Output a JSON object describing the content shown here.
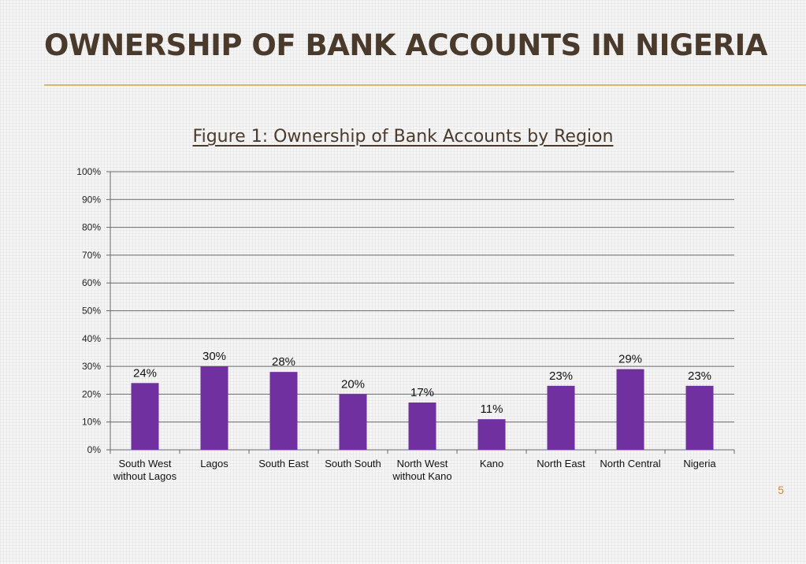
{
  "slide": {
    "title": "OWNERSHIP OF BANK ACCOUNTS IN NIGERIA",
    "page_number": "5"
  },
  "colors": {
    "bar": "#7030a0",
    "title": "#4a3a2c",
    "accent_rule": "#d9b36a",
    "page_number": "#d08a2c"
  },
  "chart_data": {
    "type": "bar",
    "title": "Figure 1: Ownership of Bank Accounts by Region",
    "categories": [
      [
        "South West",
        "without Lagos"
      ],
      [
        "Lagos"
      ],
      [
        "South East"
      ],
      [
        "South South"
      ],
      [
        "North West",
        "without Kano"
      ],
      [
        "Kano"
      ],
      [
        "North East"
      ],
      [
        "North Central"
      ],
      [
        "Nigeria"
      ]
    ],
    "values": [
      24,
      30,
      28,
      20,
      17,
      11,
      23,
      29,
      23
    ],
    "data_labels": [
      "24%",
      "30%",
      "28%",
      "20%",
      "17%",
      "11%",
      "23%",
      "29%",
      "23%"
    ],
    "y_ticks": [
      "0%",
      "10%",
      "20%",
      "30%",
      "40%",
      "50%",
      "60%",
      "70%",
      "80%",
      "90%",
      "100%"
    ],
    "ylim": [
      0,
      100
    ],
    "grid": true,
    "legend": false
  }
}
